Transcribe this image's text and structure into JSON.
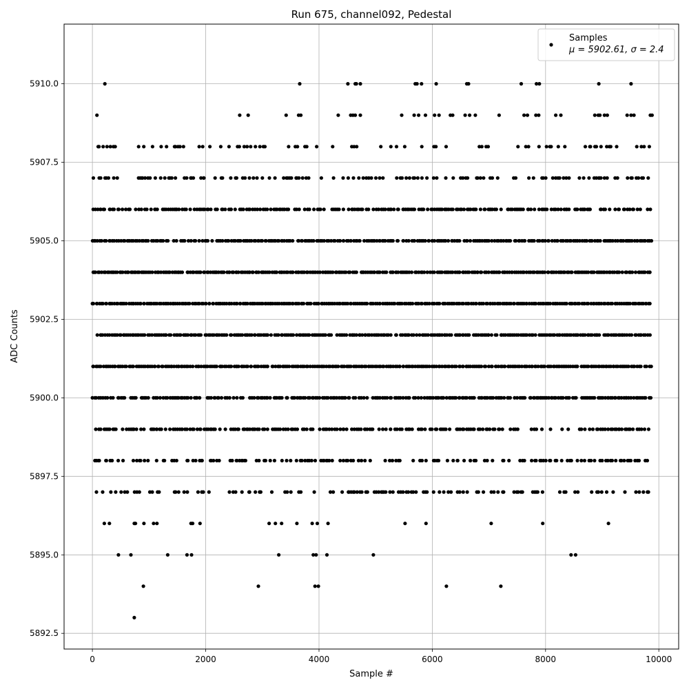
{
  "chart_data": {
    "type": "scatter",
    "title": "Run 675, channel092, Pedestal",
    "xlabel": "Sample #",
    "ylabel": "ADC Counts",
    "xlim": [
      -500,
      10350
    ],
    "ylim": [
      5892.0,
      5911.9
    ],
    "x_ticks": [
      0,
      2000,
      4000,
      6000,
      8000,
      10000
    ],
    "x_tick_labels": [
      "0",
      "2000",
      "4000",
      "6000",
      "8000",
      "10000"
    ],
    "y_ticks": [
      5892.5,
      5895.0,
      5897.5,
      5900.0,
      5902.5,
      5905.0,
      5907.5,
      5910.0
    ],
    "y_tick_labels": [
      "5892.5",
      "5895.0",
      "5897.5",
      "5900.0",
      "5902.5",
      "5905.0",
      "5907.5",
      "5910.0"
    ],
    "grid": true,
    "legend": {
      "placement": "top-right",
      "series_name": "Samples",
      "stats_mu_label": "μ = 5902.61, ",
      "stats_sigma_label": "σ = 2.4"
    },
    "series": [
      {
        "name": "Samples",
        "color": "#000000",
        "x_range": [
          0,
          9880
        ],
        "mean": 5902.61,
        "sigma": 2.4,
        "sparse_points": [
          {
            "x": 740,
            "y": 5893
          },
          {
            "x": 900,
            "y": 5894
          },
          {
            "x": 2930,
            "y": 5894
          },
          {
            "x": 3930,
            "y": 5894
          },
          {
            "x": 3990,
            "y": 5894
          },
          {
            "x": 6250,
            "y": 5894
          },
          {
            "x": 7210,
            "y": 5894
          },
          {
            "x": 460,
            "y": 5895
          },
          {
            "x": 680,
            "y": 5895
          },
          {
            "x": 1330,
            "y": 5895
          },
          {
            "x": 1670,
            "y": 5895
          },
          {
            "x": 1750,
            "y": 5895
          },
          {
            "x": 3290,
            "y": 5895
          },
          {
            "x": 3900,
            "y": 5895
          },
          {
            "x": 3950,
            "y": 5895
          },
          {
            "x": 4140,
            "y": 5895
          },
          {
            "x": 4960,
            "y": 5895
          },
          {
            "x": 8450,
            "y": 5895
          },
          {
            "x": 8530,
            "y": 5895
          },
          {
            "x": 210,
            "y": 5896
          },
          {
            "x": 300,
            "y": 5896
          },
          {
            "x": 740,
            "y": 5896
          },
          {
            "x": 760,
            "y": 5896
          },
          {
            "x": 910,
            "y": 5896
          },
          {
            "x": 1080,
            "y": 5896
          },
          {
            "x": 1140,
            "y": 5896
          },
          {
            "x": 1740,
            "y": 5896
          },
          {
            "x": 1770,
            "y": 5896
          },
          {
            "x": 1900,
            "y": 5896
          },
          {
            "x": 3120,
            "y": 5896
          },
          {
            "x": 3230,
            "y": 5896
          },
          {
            "x": 3340,
            "y": 5896
          },
          {
            "x": 3610,
            "y": 5896
          },
          {
            "x": 3880,
            "y": 5896
          },
          {
            "x": 3970,
            "y": 5896
          },
          {
            "x": 4160,
            "y": 5896
          },
          {
            "x": 5520,
            "y": 5896
          },
          {
            "x": 5890,
            "y": 5896
          },
          {
            "x": 7040,
            "y": 5896
          },
          {
            "x": 7950,
            "y": 5896
          },
          {
            "x": 9110,
            "y": 5896
          },
          {
            "x": 220,
            "y": 5910
          },
          {
            "x": 3660,
            "y": 5910
          },
          {
            "x": 4510,
            "y": 5910
          },
          {
            "x": 4640,
            "y": 5910
          },
          {
            "x": 4660,
            "y": 5910
          },
          {
            "x": 4730,
            "y": 5910
          },
          {
            "x": 5700,
            "y": 5910
          },
          {
            "x": 5730,
            "y": 5910
          },
          {
            "x": 5810,
            "y": 5910
          },
          {
            "x": 6070,
            "y": 5910
          },
          {
            "x": 6610,
            "y": 5910
          },
          {
            "x": 6640,
            "y": 5910
          },
          {
            "x": 7570,
            "y": 5910
          },
          {
            "x": 7840,
            "y": 5910
          },
          {
            "x": 7890,
            "y": 5910
          },
          {
            "x": 8940,
            "y": 5910
          },
          {
            "x": 9510,
            "y": 5910
          },
          {
            "x": 80,
            "y": 5909
          },
          {
            "x": 2600,
            "y": 5909
          },
          {
            "x": 2750,
            "y": 5909
          },
          {
            "x": 3420,
            "y": 5909
          },
          {
            "x": 3640,
            "y": 5909
          },
          {
            "x": 3680,
            "y": 5909
          },
          {
            "x": 4340,
            "y": 5909
          },
          {
            "x": 4560,
            "y": 5909
          },
          {
            "x": 4600,
            "y": 5909
          },
          {
            "x": 4640,
            "y": 5909
          },
          {
            "x": 4730,
            "y": 5909
          },
          {
            "x": 5460,
            "y": 5909
          },
          {
            "x": 5680,
            "y": 5909
          },
          {
            "x": 5760,
            "y": 5909
          },
          {
            "x": 5880,
            "y": 5909
          },
          {
            "x": 6040,
            "y": 5909
          },
          {
            "x": 6120,
            "y": 5909
          },
          {
            "x": 6320,
            "y": 5909
          },
          {
            "x": 6360,
            "y": 5909
          },
          {
            "x": 6580,
            "y": 5909
          },
          {
            "x": 6660,
            "y": 5909
          },
          {
            "x": 6760,
            "y": 5909
          },
          {
            "x": 7180,
            "y": 5909
          },
          {
            "x": 7620,
            "y": 5909
          },
          {
            "x": 7680,
            "y": 5909
          },
          {
            "x": 7830,
            "y": 5909
          },
          {
            "x": 7880,
            "y": 5909
          },
          {
            "x": 8180,
            "y": 5909
          },
          {
            "x": 8270,
            "y": 5909
          },
          {
            "x": 8870,
            "y": 5909
          },
          {
            "x": 8930,
            "y": 5909
          },
          {
            "x": 8960,
            "y": 5909
          },
          {
            "x": 9040,
            "y": 5909
          },
          {
            "x": 9090,
            "y": 5909
          },
          {
            "x": 9440,
            "y": 5909
          },
          {
            "x": 9510,
            "y": 5909
          },
          {
            "x": 9560,
            "y": 5909
          },
          {
            "x": 9850,
            "y": 5909
          },
          {
            "x": 9880,
            "y": 5909
          }
        ],
        "dense_bands": [
          {
            "y": 5897,
            "density": 0.32
          },
          {
            "y": 5898,
            "density": 0.45
          },
          {
            "y": 5899,
            "density": 0.62
          },
          {
            "y": 5900,
            "density": 0.82
          },
          {
            "y": 5901,
            "density": 0.97
          },
          {
            "y": 5902,
            "density": 0.92
          },
          {
            "y": 5903,
            "density": 1.0
          },
          {
            "y": 5904,
            "density": 0.97
          },
          {
            "y": 5905,
            "density": 0.88
          },
          {
            "y": 5906,
            "density": 0.68
          },
          {
            "y": 5907,
            "density": 0.38
          },
          {
            "y": 5908,
            "density": 0.28
          }
        ]
      }
    ]
  }
}
